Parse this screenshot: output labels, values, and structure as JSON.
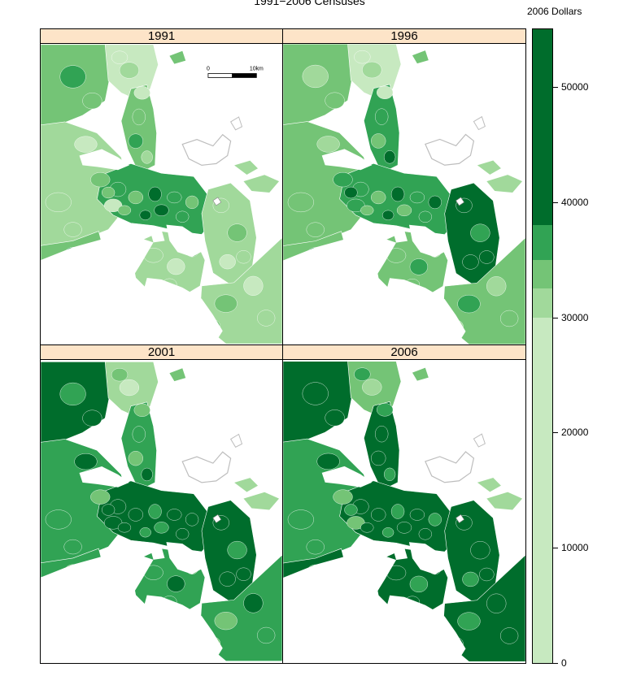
{
  "title": "1991−2006 Censuses",
  "legend": {
    "title": "2006 Dollars",
    "max": 55000,
    "ticks": [
      "0",
      "10000",
      "20000",
      "30000",
      "40000",
      "50000"
    ],
    "bins": [
      {
        "from": 0,
        "to": 30000,
        "color": "#c7e9c0"
      },
      {
        "from": 30000,
        "to": 32500,
        "color": "#a1d99b"
      },
      {
        "from": 32500,
        "to": 35000,
        "color": "#74c476"
      },
      {
        "from": 35000,
        "to": 38000,
        "color": "#31a354"
      },
      {
        "from": 38000,
        "to": 55000,
        "color": "#006d2c"
      }
    ]
  },
  "scale_bar": {
    "start_label": "0",
    "end_label": "10km"
  },
  "colors": {
    "c1": "#c7e9c0",
    "c2": "#a1d99b",
    "c3": "#74c476",
    "c4": "#31a354",
    "c5": "#006d2c",
    "water": "#ffffff",
    "outline": "#bdbdbd",
    "strip": "#fde4c8"
  },
  "panels": [
    {
      "year": "1991",
      "levels": {
        "nw": 3,
        "west": 2,
        "north": 1,
        "central": 4,
        "east": 2,
        "sw": 3,
        "south": 2,
        "se": 2,
        "northshore": 3
      }
    },
    {
      "year": "1996",
      "levels": {
        "nw": 3,
        "west": 3,
        "north": 1,
        "central": 4,
        "east": 5,
        "sw": 3,
        "south": 3,
        "se": 3,
        "northshore": 4
      }
    },
    {
      "year": "2001",
      "levels": {
        "nw": 5,
        "west": 4,
        "north": 2,
        "central": 5,
        "east": 5,
        "sw": 4,
        "south": 4,
        "se": 4,
        "northshore": 4
      }
    },
    {
      "year": "2006",
      "levels": {
        "nw": 5,
        "west": 4,
        "north": 3,
        "central": 5,
        "east": 5,
        "sw": 5,
        "south": 5,
        "se": 5,
        "northshore": 5
      }
    }
  ]
}
